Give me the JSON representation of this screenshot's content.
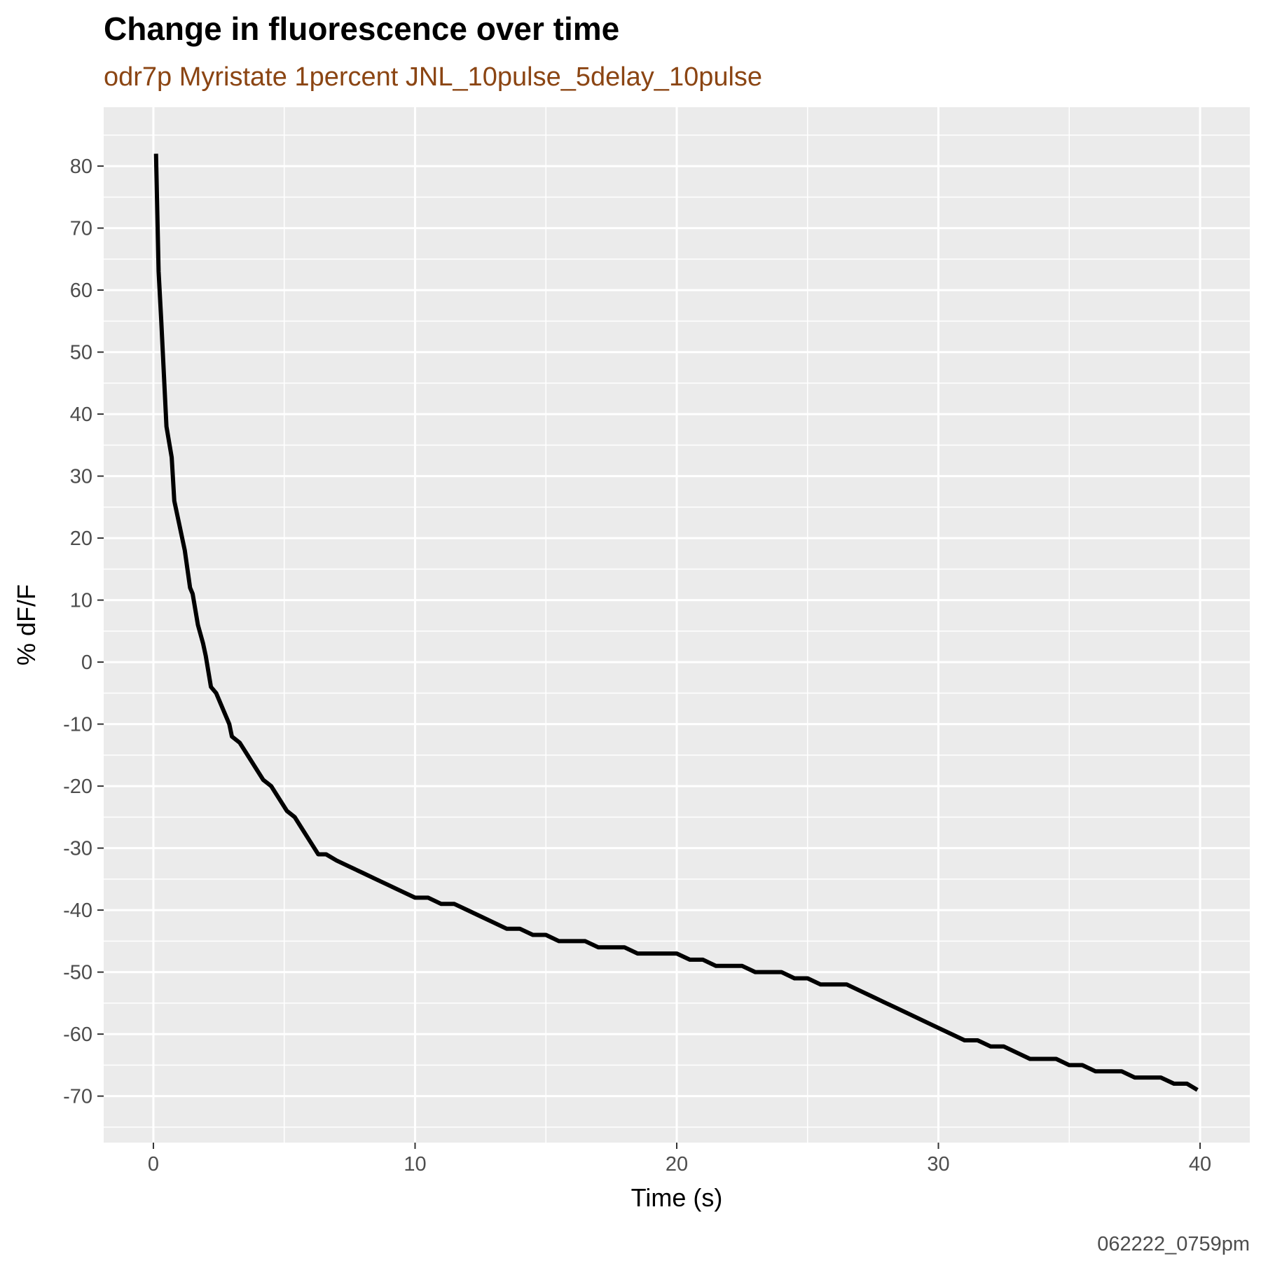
{
  "chart_data": {
    "type": "line",
    "title": "Change in fluorescence over time",
    "subtitle": "odr7p Myristate 1percent JNL_10pulse_5delay_10pulse",
    "caption": "062222_0759pm",
    "xlabel": "Time (s)",
    "ylabel": "% dF/F",
    "xlim": [
      -1.9,
      41.9
    ],
    "ylim": [
      -77.5,
      89.5
    ],
    "x_ticks": [
      0,
      10,
      20,
      30,
      40
    ],
    "y_ticks": [
      80,
      70,
      60,
      50,
      40,
      30,
      20,
      10,
      0,
      -10,
      -20,
      -30,
      -40,
      -50,
      -60,
      -70
    ],
    "grid": true,
    "legend": "none",
    "colors": {
      "panel_background": "#ebebeb",
      "grid_line": "#ffffff",
      "line": "#000000",
      "subtitle": "#8b4513",
      "tick_label": "#4d4d4d"
    },
    "series": [
      {
        "x": [
          0.1,
          0.2,
          0.3,
          0.5,
          0.7,
          0.8,
          1.0,
          1.2,
          1.4,
          1.5,
          1.7,
          1.9,
          2.0,
          2.2,
          2.4,
          2.5,
          2.7,
          2.9,
          3.0,
          3.3,
          3.6,
          3.9,
          4.2,
          4.5,
          4.8,
          5.1,
          5.4,
          5.7,
          6.0,
          6.3,
          6.6,
          7.0,
          7.5,
          8.0,
          8.5,
          9.0,
          9.5,
          10.0,
          10.5,
          11.0,
          11.5,
          12.0,
          12.5,
          13.0,
          13.5,
          14.0,
          14.5,
          15.0,
          15.5,
          16.0,
          16.5,
          17.0,
          17.5,
          18.0,
          18.5,
          19.0,
          19.5,
          20.0,
          20.5,
          21.0,
          21.5,
          22.0,
          22.5,
          23.0,
          23.5,
          24.0,
          24.5,
          25.0,
          25.5,
          26.0,
          26.5,
          27.0,
          27.5,
          28.0,
          28.5,
          29.0,
          29.5,
          30.0,
          30.5,
          31.0,
          31.5,
          32.0,
          32.5,
          33.0,
          33.5,
          34.0,
          34.5,
          35.0,
          35.5,
          36.0,
          36.5,
          37.0,
          37.5,
          38.0,
          38.5,
          39.0,
          39.5,
          39.9
        ],
        "y": [
          82,
          63,
          55,
          38,
          33,
          26,
          22,
          18,
          12,
          11,
          6,
          3,
          1,
          -4,
          -5,
          -6,
          -8,
          -10,
          -12,
          -13,
          -15,
          -17,
          -19,
          -20,
          -22,
          -24,
          -25,
          -27,
          -29,
          -31,
          -31,
          -32,
          -33,
          -34,
          -35,
          -36,
          -37,
          -38,
          -38,
          -39,
          -39,
          -40,
          -41,
          -42,
          -43,
          -43,
          -44,
          -44,
          -45,
          -45,
          -45,
          -46,
          -46,
          -46,
          -47,
          -47,
          -47,
          -47,
          -48,
          -48,
          -49,
          -49,
          -49,
          -50,
          -50,
          -50,
          -51,
          -51,
          -52,
          -52,
          -52,
          -53,
          -54,
          -55,
          -56,
          -57,
          -58,
          -59,
          -60,
          -61,
          -61,
          -62,
          -62,
          -63,
          -64,
          -64,
          -64,
          -65,
          -65,
          -66,
          -66,
          -66,
          -67,
          -67,
          -67,
          -68,
          -68,
          -69
        ]
      }
    ]
  }
}
